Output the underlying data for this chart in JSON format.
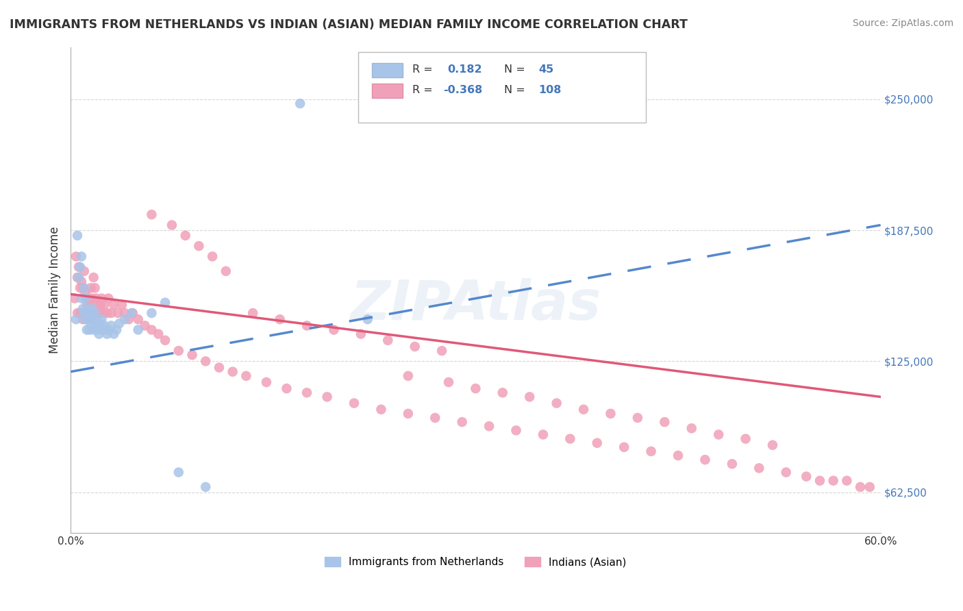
{
  "title": "IMMIGRANTS FROM NETHERLANDS VS INDIAN (ASIAN) MEDIAN FAMILY INCOME CORRELATION CHART",
  "source": "Source: ZipAtlas.com",
  "ylabel": "Median Family Income",
  "xlim": [
    0.0,
    0.6
  ],
  "ylim": [
    43000,
    275000
  ],
  "yticks": [
    62500,
    125000,
    187500,
    250000
  ],
  "ytick_labels": [
    "$62,500",
    "$125,000",
    "$187,500",
    "$250,000"
  ],
  "xtick_vals": [
    0.0,
    0.1,
    0.2,
    0.3,
    0.4,
    0.5,
    0.6
  ],
  "xtick_labels": [
    "0.0%",
    "",
    "",
    "",
    "",
    "",
    "60.0%"
  ],
  "R_netherlands": 0.182,
  "N_netherlands": 45,
  "R_indian": -0.368,
  "N_indian": 108,
  "netherlands_color": "#a8c4e8",
  "indian_color": "#f0a0b8",
  "netherlands_line_color": "#5588cc",
  "indian_line_color": "#e05878",
  "legend_label_netherlands": "Immigrants from Netherlands",
  "legend_label_indian": "Indians (Asian)",
  "background_color": "#ffffff",
  "watermark": "ZIPAtlas",
  "nl_trend_x0": 0.0,
  "nl_trend_y0": 120000,
  "nl_trend_x1": 0.6,
  "nl_trend_y1": 190000,
  "in_trend_x0": 0.0,
  "in_trend_y0": 157000,
  "in_trend_x1": 0.6,
  "in_trend_y1": 108000,
  "netherlands_x": [
    0.004,
    0.005,
    0.006,
    0.007,
    0.008,
    0.008,
    0.009,
    0.01,
    0.01,
    0.011,
    0.011,
    0.012,
    0.012,
    0.013,
    0.013,
    0.014,
    0.015,
    0.015,
    0.016,
    0.016,
    0.017,
    0.018,
    0.018,
    0.019,
    0.02,
    0.021,
    0.022,
    0.023,
    0.024,
    0.025,
    0.027,
    0.028,
    0.03,
    0.032,
    0.034,
    0.036,
    0.04,
    0.045,
    0.05,
    0.06,
    0.07,
    0.08,
    0.1,
    0.17,
    0.22
  ],
  "netherlands_y": [
    145000,
    185000,
    165000,
    170000,
    155000,
    175000,
    150000,
    148000,
    160000,
    145000,
    155000,
    140000,
    150000,
    148000,
    145000,
    140000,
    148000,
    143000,
    145000,
    150000,
    140000,
    145000,
    148000,
    142000,
    140000,
    138000,
    143000,
    145000,
    140000,
    142000,
    138000,
    140000,
    142000,
    138000,
    140000,
    143000,
    145000,
    148000,
    140000,
    148000,
    153000,
    72000,
    65000,
    248000,
    145000
  ],
  "indian_x": [
    0.003,
    0.004,
    0.005,
    0.005,
    0.006,
    0.007,
    0.007,
    0.008,
    0.008,
    0.009,
    0.009,
    0.01,
    0.01,
    0.011,
    0.011,
    0.012,
    0.012,
    0.013,
    0.014,
    0.014,
    0.015,
    0.015,
    0.016,
    0.017,
    0.017,
    0.018,
    0.019,
    0.02,
    0.021,
    0.022,
    0.023,
    0.024,
    0.025,
    0.027,
    0.028,
    0.03,
    0.032,
    0.035,
    0.038,
    0.04,
    0.043,
    0.046,
    0.05,
    0.055,
    0.06,
    0.065,
    0.07,
    0.08,
    0.09,
    0.1,
    0.11,
    0.12,
    0.13,
    0.145,
    0.16,
    0.175,
    0.19,
    0.21,
    0.23,
    0.25,
    0.27,
    0.29,
    0.31,
    0.33,
    0.35,
    0.37,
    0.39,
    0.41,
    0.43,
    0.45,
    0.47,
    0.49,
    0.51,
    0.53,
    0.545,
    0.555,
    0.565,
    0.575,
    0.585,
    0.592,
    0.25,
    0.28,
    0.3,
    0.32,
    0.34,
    0.36,
    0.38,
    0.4,
    0.42,
    0.44,
    0.46,
    0.48,
    0.5,
    0.52,
    0.135,
    0.155,
    0.175,
    0.195,
    0.215,
    0.235,
    0.255,
    0.275,
    0.06,
    0.075,
    0.085,
    0.095,
    0.105,
    0.115
  ],
  "indian_y": [
    155000,
    175000,
    165000,
    148000,
    170000,
    160000,
    148000,
    163000,
    148000,
    160000,
    145000,
    168000,
    148000,
    158000,
    148000,
    152000,
    148000,
    155000,
    152000,
    145000,
    160000,
    148000,
    155000,
    165000,
    148000,
    160000,
    155000,
    152000,
    148000,
    152000,
    155000,
    148000,
    152000,
    148000,
    155000,
    148000,
    152000,
    148000,
    152000,
    148000,
    145000,
    148000,
    145000,
    142000,
    140000,
    138000,
    135000,
    130000,
    128000,
    125000,
    122000,
    120000,
    118000,
    115000,
    112000,
    110000,
    108000,
    105000,
    102000,
    100000,
    98000,
    96000,
    94000,
    92000,
    90000,
    88000,
    86000,
    84000,
    82000,
    80000,
    78000,
    76000,
    74000,
    72000,
    70000,
    68000,
    68000,
    68000,
    65000,
    65000,
    118000,
    115000,
    112000,
    110000,
    108000,
    105000,
    102000,
    100000,
    98000,
    96000,
    93000,
    90000,
    88000,
    85000,
    148000,
    145000,
    142000,
    140000,
    138000,
    135000,
    132000,
    130000,
    195000,
    190000,
    185000,
    180000,
    175000,
    168000
  ]
}
